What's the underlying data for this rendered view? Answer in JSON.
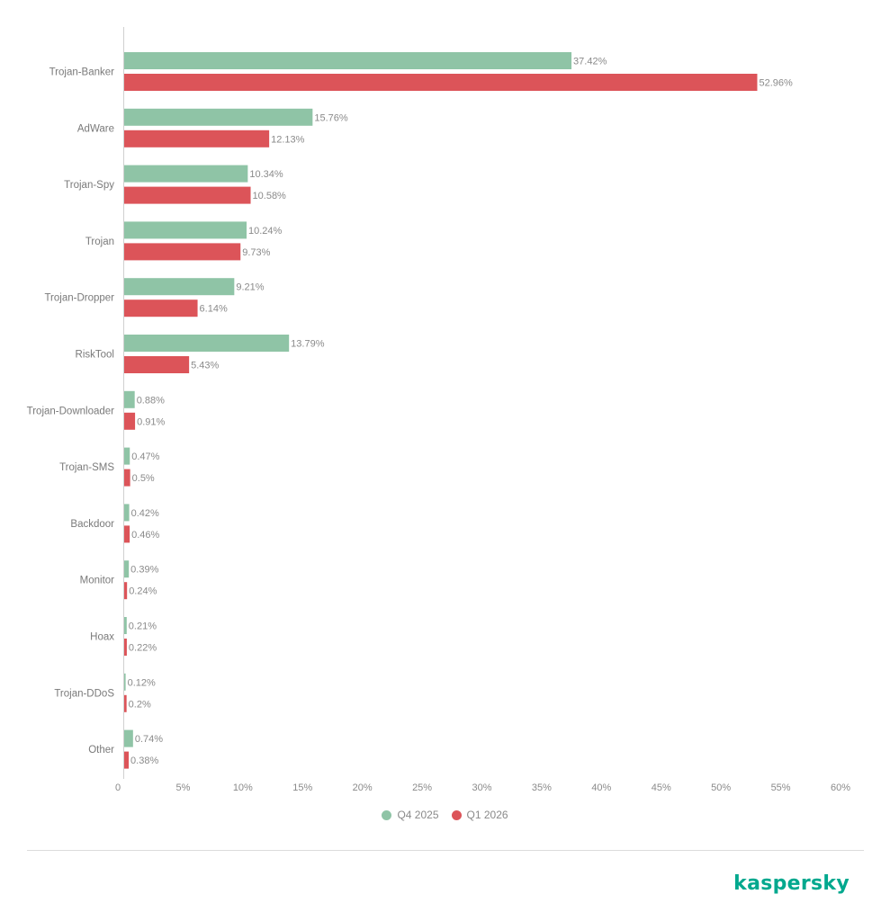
{
  "colors": {
    "series_q4": "#8fc4a6",
    "series_q1": "#dc5459",
    "axis": "#d0d0d0",
    "label_text": "#8a8a8a",
    "brand": "#00a88e"
  },
  "legend": {
    "items": [
      {
        "label": "Q4 2025",
        "color": "#8fc4a6"
      },
      {
        "label": "Q1 2026",
        "color": "#dc5459"
      }
    ]
  },
  "brand": {
    "logo_text": "kaspersky"
  },
  "chart_data": {
    "type": "bar",
    "orientation": "horizontal",
    "categories": [
      "Trojan-Banker",
      "AdWare",
      "Trojan-Spy",
      "Trojan",
      "Trojan-Dropper",
      "RiskTool",
      "Trojan-Downloader",
      "Trojan-SMS",
      "Backdoor",
      "Monitor",
      "Hoax",
      "Trojan-DDoS",
      "Other"
    ],
    "series": [
      {
        "name": "Q4 2025",
        "color": "#8fc4a6",
        "values": [
          37.42,
          15.76,
          10.34,
          10.24,
          9.21,
          13.79,
          0.88,
          0.47,
          0.42,
          0.39,
          0.21,
          0.12,
          0.74
        ],
        "labels": [
          "37.42%",
          "15.76%",
          "10.34%",
          "10.24%",
          "9.21%",
          "13.79%",
          "0.88%",
          "0.47%",
          "0.42%",
          "0.39%",
          "0.21%",
          "0.12%",
          "0.74%"
        ]
      },
      {
        "name": "Q1 2026",
        "color": "#dc5459",
        "values": [
          52.96,
          12.13,
          10.58,
          9.73,
          6.14,
          5.43,
          0.91,
          0.5,
          0.46,
          0.24,
          0.22,
          0.2,
          0.38
        ],
        "labels": [
          "52.96%",
          "12.13%",
          "10.58%",
          "9.73%",
          "6.14%",
          "5.43%",
          "0.91%",
          "0.5%",
          "0.46%",
          "0.24%",
          "0.22%",
          "0.2%",
          "0.38%"
        ]
      }
    ],
    "xlim": [
      0,
      60
    ],
    "x_ticks": [
      0,
      5,
      10,
      15,
      20,
      25,
      30,
      35,
      40,
      45,
      50,
      55,
      60
    ],
    "x_tick_labels": [
      "0",
      "5%",
      "10%",
      "15%",
      "20%",
      "25%",
      "30%",
      "35%",
      "40%",
      "45%",
      "50%",
      "55%",
      "60%"
    ],
    "grid": false,
    "legend_position": "bottom-center"
  }
}
